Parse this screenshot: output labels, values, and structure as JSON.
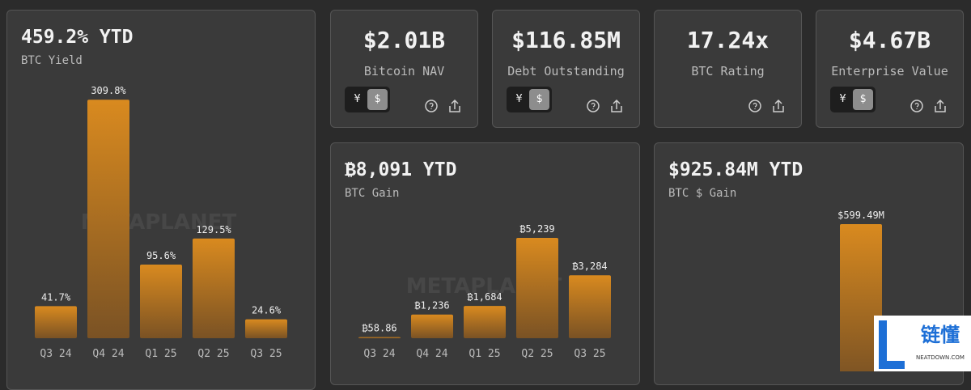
{
  "cards": [
    {
      "value": "$2.01B",
      "label": "Bitcoin NAV",
      "toggle": [
        "¥",
        "$"
      ]
    },
    {
      "value": "$116.85M",
      "label": "Debt Outstanding",
      "toggle": [
        "¥",
        "$"
      ]
    },
    {
      "value": "17.24x",
      "label": "BTC Rating"
    },
    {
      "value": "$4.67B",
      "label": "Enterprise Value",
      "toggle": [
        "¥",
        "$"
      ]
    }
  ],
  "chart_data": [
    {
      "type": "bar",
      "title": "459.2% YTD",
      "subtitle": "BTC Yield",
      "watermark": "METAPLANET",
      "categories": [
        "Q3 24",
        "Q4 24",
        "Q1 25",
        "Q2 25",
        "Q3 25"
      ],
      "values": [
        41.7,
        309.8,
        95.6,
        129.5,
        24.6
      ],
      "value_labels": [
        "41.7%",
        "309.8%",
        "95.6%",
        "129.5%",
        "24.6%"
      ],
      "color": "#d98a1f",
      "ylim": [
        0,
        310
      ]
    },
    {
      "type": "bar",
      "title": "₿8,091 YTD",
      "subtitle": "BTC Gain",
      "watermark": "METAPLANET",
      "categories": [
        "Q3 24",
        "Q4 24",
        "Q1 25",
        "Q2 25",
        "Q3 25"
      ],
      "values": [
        58.86,
        1236,
        1684,
        5239,
        3284
      ],
      "value_labels": [
        "₿58.86",
        "₿1,236",
        "₿1,684",
        "₿5,239",
        "₿3,284"
      ],
      "color": "#d98a1f",
      "ylim": [
        0,
        12460
      ]
    },
    {
      "type": "bar",
      "title": "$925.84M YTD",
      "subtitle": "BTC $ Gain",
      "categories": [
        null,
        null,
        null,
        null,
        null
      ],
      "values": [
        null,
        null,
        null,
        599.49,
        null
      ],
      "value_labels": [
        null,
        null,
        null,
        "$599.49M",
        null
      ],
      "color": "#d98a1f",
      "ylim": [
        0,
        1078
      ]
    }
  ],
  "overlay": {
    "title": "链懂",
    "subtitle": "NEATDOWN.COM"
  }
}
